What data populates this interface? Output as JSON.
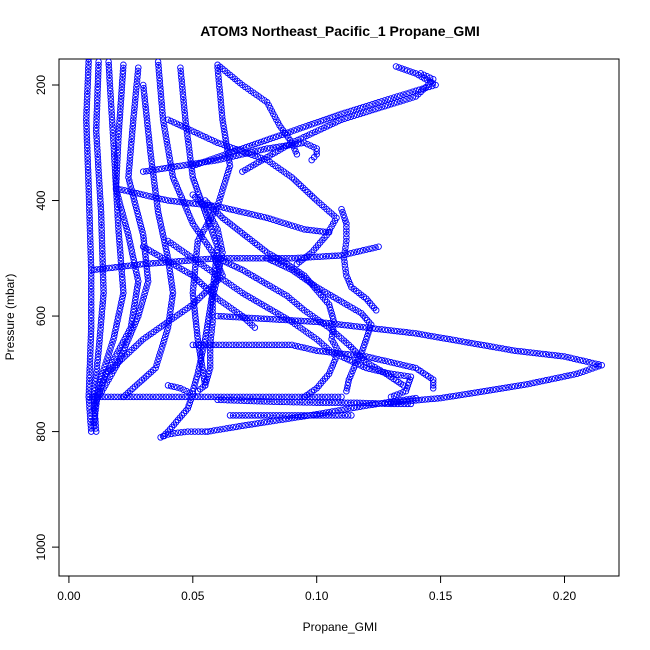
{
  "chart_data": {
    "type": "scatter",
    "title": "ATOM3 Northeast_Pacific_1 Propane_GMI",
    "xlabel": "Propane_GMI",
    "ylabel": "Pressure (mbar)",
    "xlim": [
      -0.004,
      0.222
    ],
    "ylim": [
      1050,
      155
    ],
    "y_reversed": true,
    "x_ticks": [
      0.0,
      0.05,
      0.1,
      0.15,
      0.2
    ],
    "x_tick_labels": [
      "0.00",
      "0.05",
      "0.10",
      "0.15",
      "0.20"
    ],
    "y_ticks": [
      200,
      400,
      600,
      800,
      1000
    ],
    "y_tick_labels": [
      "200",
      "400",
      "600",
      "800",
      "1000"
    ],
    "grid": false,
    "marker": "open-circle",
    "color": "#0000ff",
    "series": [
      {
        "points": [
          [
            0.008,
            155
          ],
          [
            0.007,
            260
          ],
          [
            0.008,
            380
          ],
          [
            0.009,
            520
          ],
          [
            0.009,
            620
          ],
          [
            0.008,
            740
          ],
          [
            0.009,
            800
          ]
        ]
      },
      {
        "points": [
          [
            0.012,
            160
          ],
          [
            0.011,
            280
          ],
          [
            0.013,
            420
          ],
          [
            0.014,
            560
          ],
          [
            0.012,
            660
          ],
          [
            0.01,
            740
          ],
          [
            0.011,
            800
          ]
        ]
      },
      {
        "points": [
          [
            0.016,
            160
          ],
          [
            0.018,
            300
          ],
          [
            0.02,
            450
          ],
          [
            0.022,
            560
          ],
          [
            0.018,
            640
          ],
          [
            0.012,
            720
          ],
          [
            0.01,
            790
          ]
        ]
      },
      {
        "points": [
          [
            0.022,
            165
          ],
          [
            0.02,
            290
          ],
          [
            0.019,
            380
          ],
          [
            0.024,
            460
          ],
          [
            0.028,
            540
          ],
          [
            0.025,
            620
          ],
          [
            0.015,
            700
          ],
          [
            0.01,
            760
          ]
        ]
      },
      {
        "points": [
          [
            0.028,
            170
          ],
          [
            0.026,
            260
          ],
          [
            0.024,
            360
          ],
          [
            0.03,
            460
          ],
          [
            0.032,
            540
          ],
          [
            0.028,
            600
          ],
          [
            0.02,
            680
          ],
          [
            0.012,
            740
          ]
        ]
      },
      {
        "points": [
          [
            0.03,
            200
          ],
          [
            0.033,
            320
          ],
          [
            0.036,
            420
          ],
          [
            0.04,
            500
          ],
          [
            0.042,
            560
          ],
          [
            0.04,
            620
          ],
          [
            0.035,
            690
          ],
          [
            0.022,
            740
          ]
        ]
      },
      {
        "points": [
          [
            0.036,
            160
          ],
          [
            0.038,
            260
          ],
          [
            0.042,
            360
          ],
          [
            0.05,
            440
          ],
          [
            0.058,
            490
          ],
          [
            0.062,
            530
          ],
          [
            0.05,
            580
          ],
          [
            0.03,
            640
          ],
          [
            0.015,
            700
          ]
        ]
      },
      {
        "points": [
          [
            0.045,
            170
          ],
          [
            0.047,
            260
          ],
          [
            0.05,
            360
          ],
          [
            0.055,
            420
          ],
          [
            0.06,
            480
          ],
          [
            0.058,
            560
          ],
          [
            0.055,
            640
          ],
          [
            0.052,
            700
          ],
          [
            0.05,
            730
          ]
        ]
      },
      {
        "points": [
          [
            0.06,
            170
          ],
          [
            0.062,
            260
          ],
          [
            0.065,
            340
          ],
          [
            0.06,
            410
          ],
          [
            0.052,
            470
          ],
          [
            0.05,
            560
          ],
          [
            0.052,
            640
          ],
          [
            0.055,
            720
          ]
        ]
      },
      {
        "points": [
          [
            0.05,
            390
          ],
          [
            0.055,
            410
          ],
          [
            0.06,
            450
          ],
          [
            0.062,
            490
          ],
          [
            0.06,
            530
          ],
          [
            0.058,
            570
          ],
          [
            0.058,
            610
          ],
          [
            0.057,
            650
          ],
          [
            0.057,
            690
          ],
          [
            0.055,
            720
          ],
          [
            0.052,
            730
          ]
        ]
      },
      {
        "points": [
          [
            0.055,
            400
          ],
          [
            0.062,
            430
          ],
          [
            0.068,
            450
          ],
          [
            0.074,
            470
          ],
          [
            0.08,
            490
          ],
          [
            0.088,
            510
          ],
          [
            0.095,
            530
          ],
          [
            0.1,
            555
          ],
          [
            0.105,
            580
          ],
          [
            0.107,
            610
          ],
          [
            0.106,
            640
          ],
          [
            0.11,
            670
          ],
          [
            0.12,
            690
          ],
          [
            0.13,
            700
          ],
          [
            0.138,
            705
          ],
          [
            0.136,
            730
          ],
          [
            0.13,
            740
          ]
        ]
      },
      {
        "points": [
          [
            0.04,
            470
          ],
          [
            0.05,
            500
          ],
          [
            0.06,
            530
          ],
          [
            0.07,
            560
          ],
          [
            0.08,
            585
          ],
          [
            0.09,
            610
          ],
          [
            0.1,
            640
          ],
          [
            0.108,
            670
          ],
          [
            0.105,
            700
          ],
          [
            0.1,
            725
          ],
          [
            0.095,
            740
          ]
        ]
      },
      {
        "points": [
          [
            0.06,
            500
          ],
          [
            0.07,
            520
          ],
          [
            0.08,
            545
          ],
          [
            0.088,
            565
          ],
          [
            0.095,
            590
          ],
          [
            0.105,
            620
          ],
          [
            0.113,
            650
          ],
          [
            0.12,
            680
          ],
          [
            0.128,
            700
          ],
          [
            0.135,
            720
          ]
        ]
      },
      {
        "points": [
          [
            0.08,
            500
          ],
          [
            0.09,
            520
          ],
          [
            0.095,
            535
          ],
          [
            0.1,
            550
          ],
          [
            0.11,
            575
          ],
          [
            0.118,
            595
          ],
          [
            0.122,
            615
          ],
          [
            0.12,
            640
          ],
          [
            0.118,
            665
          ],
          [
            0.115,
            690
          ],
          [
            0.113,
            710
          ],
          [
            0.112,
            730
          ]
        ]
      },
      {
        "points": [
          [
            0.06,
            165
          ],
          [
            0.07,
            200
          ],
          [
            0.08,
            230
          ],
          [
            0.085,
            270
          ],
          [
            0.09,
            300
          ],
          [
            0.092,
            320
          ]
        ]
      },
      {
        "points": [
          [
            0.04,
            260
          ],
          [
            0.06,
            300
          ],
          [
            0.08,
            330
          ],
          [
            0.09,
            360
          ],
          [
            0.1,
            400
          ],
          [
            0.108,
            430
          ],
          [
            0.104,
            460
          ],
          [
            0.098,
            490
          ],
          [
            0.092,
            510
          ]
        ]
      },
      {
        "points": [
          [
            0.02,
            380
          ],
          [
            0.04,
            400
          ],
          [
            0.06,
            410
          ],
          [
            0.08,
            430
          ],
          [
            0.095,
            450
          ],
          [
            0.105,
            455
          ]
        ]
      },
      {
        "points": [
          [
            0.03,
            350
          ],
          [
            0.06,
            330
          ],
          [
            0.08,
            310
          ],
          [
            0.095,
            300
          ],
          [
            0.1,
            310
          ],
          [
            0.1,
            320
          ],
          [
            0.098,
            330
          ]
        ]
      },
      {
        "points": [
          [
            0.11,
            415
          ],
          [
            0.112,
            440
          ],
          [
            0.112,
            470
          ],
          [
            0.111,
            500
          ],
          [
            0.112,
            530
          ],
          [
            0.114,
            550
          ],
          [
            0.12,
            570
          ],
          [
            0.124,
            590
          ]
        ]
      },
      {
        "points": [
          [
            0.07,
            350
          ],
          [
            0.09,
            300
          ],
          [
            0.11,
            260
          ],
          [
            0.125,
            240
          ],
          [
            0.14,
            220
          ],
          [
            0.145,
            200
          ],
          [
            0.147,
            190
          ],
          [
            0.142,
            180
          ]
        ]
      },
      {
        "points": [
          [
            0.05,
            340
          ],
          [
            0.08,
            295
          ],
          [
            0.11,
            250
          ],
          [
            0.14,
            210
          ],
          [
            0.148,
            200
          ],
          [
            0.14,
            180
          ],
          [
            0.132,
            168
          ]
        ]
      },
      {
        "points": [
          [
            0.01,
            520
          ],
          [
            0.03,
            510
          ],
          [
            0.06,
            500
          ],
          [
            0.09,
            500
          ],
          [
            0.11,
            495
          ],
          [
            0.125,
            480
          ]
        ]
      },
      {
        "points": [
          [
            0.06,
            600
          ],
          [
            0.08,
            605
          ],
          [
            0.1,
            610
          ],
          [
            0.12,
            620
          ],
          [
            0.14,
            630
          ],
          [
            0.16,
            645
          ],
          [
            0.18,
            660
          ],
          [
            0.2,
            670
          ],
          [
            0.215,
            685
          ],
          [
            0.205,
            700
          ],
          [
            0.185,
            718
          ],
          [
            0.165,
            732
          ],
          [
            0.15,
            742
          ],
          [
            0.13,
            750
          ]
        ]
      },
      {
        "points": [
          [
            0.05,
            650
          ],
          [
            0.07,
            650
          ],
          [
            0.09,
            650
          ],
          [
            0.1,
            660
          ],
          [
            0.12,
            670
          ],
          [
            0.14,
            690
          ],
          [
            0.147,
            710
          ],
          [
            0.147,
            725
          ]
        ]
      },
      {
        "points": [
          [
            0.03,
            480
          ],
          [
            0.05,
            530
          ],
          [
            0.06,
            570
          ],
          [
            0.07,
            600
          ],
          [
            0.075,
            620
          ]
        ]
      },
      {
        "points": [
          [
            0.008,
            740
          ],
          [
            0.03,
            740
          ],
          [
            0.06,
            740
          ],
          [
            0.09,
            740
          ],
          [
            0.11,
            740
          ]
        ]
      },
      {
        "points": [
          [
            0.06,
            745
          ],
          [
            0.08,
            748
          ],
          [
            0.1,
            750
          ],
          [
            0.115,
            750
          ],
          [
            0.13,
            752
          ],
          [
            0.138,
            752
          ]
        ]
      },
      {
        "points": [
          [
            0.065,
            772
          ],
          [
            0.08,
            772
          ],
          [
            0.095,
            772
          ],
          [
            0.105,
            772
          ],
          [
            0.114,
            772
          ]
        ]
      },
      {
        "points": [
          [
            0.037,
            810
          ],
          [
            0.04,
            805
          ],
          [
            0.044,
            802
          ],
          [
            0.048,
            800
          ],
          [
            0.055,
            800
          ]
        ]
      },
      {
        "points": [
          [
            0.056,
            800
          ],
          [
            0.07,
            790
          ],
          [
            0.085,
            780
          ],
          [
            0.1,
            770
          ],
          [
            0.12,
            755
          ],
          [
            0.14,
            742
          ]
        ]
      },
      {
        "points": [
          [
            0.04,
            720
          ],
          [
            0.045,
            725
          ],
          [
            0.05,
            735
          ],
          [
            0.048,
            760
          ],
          [
            0.044,
            780
          ],
          [
            0.04,
            800
          ],
          [
            0.038,
            808
          ]
        ]
      }
    ]
  }
}
